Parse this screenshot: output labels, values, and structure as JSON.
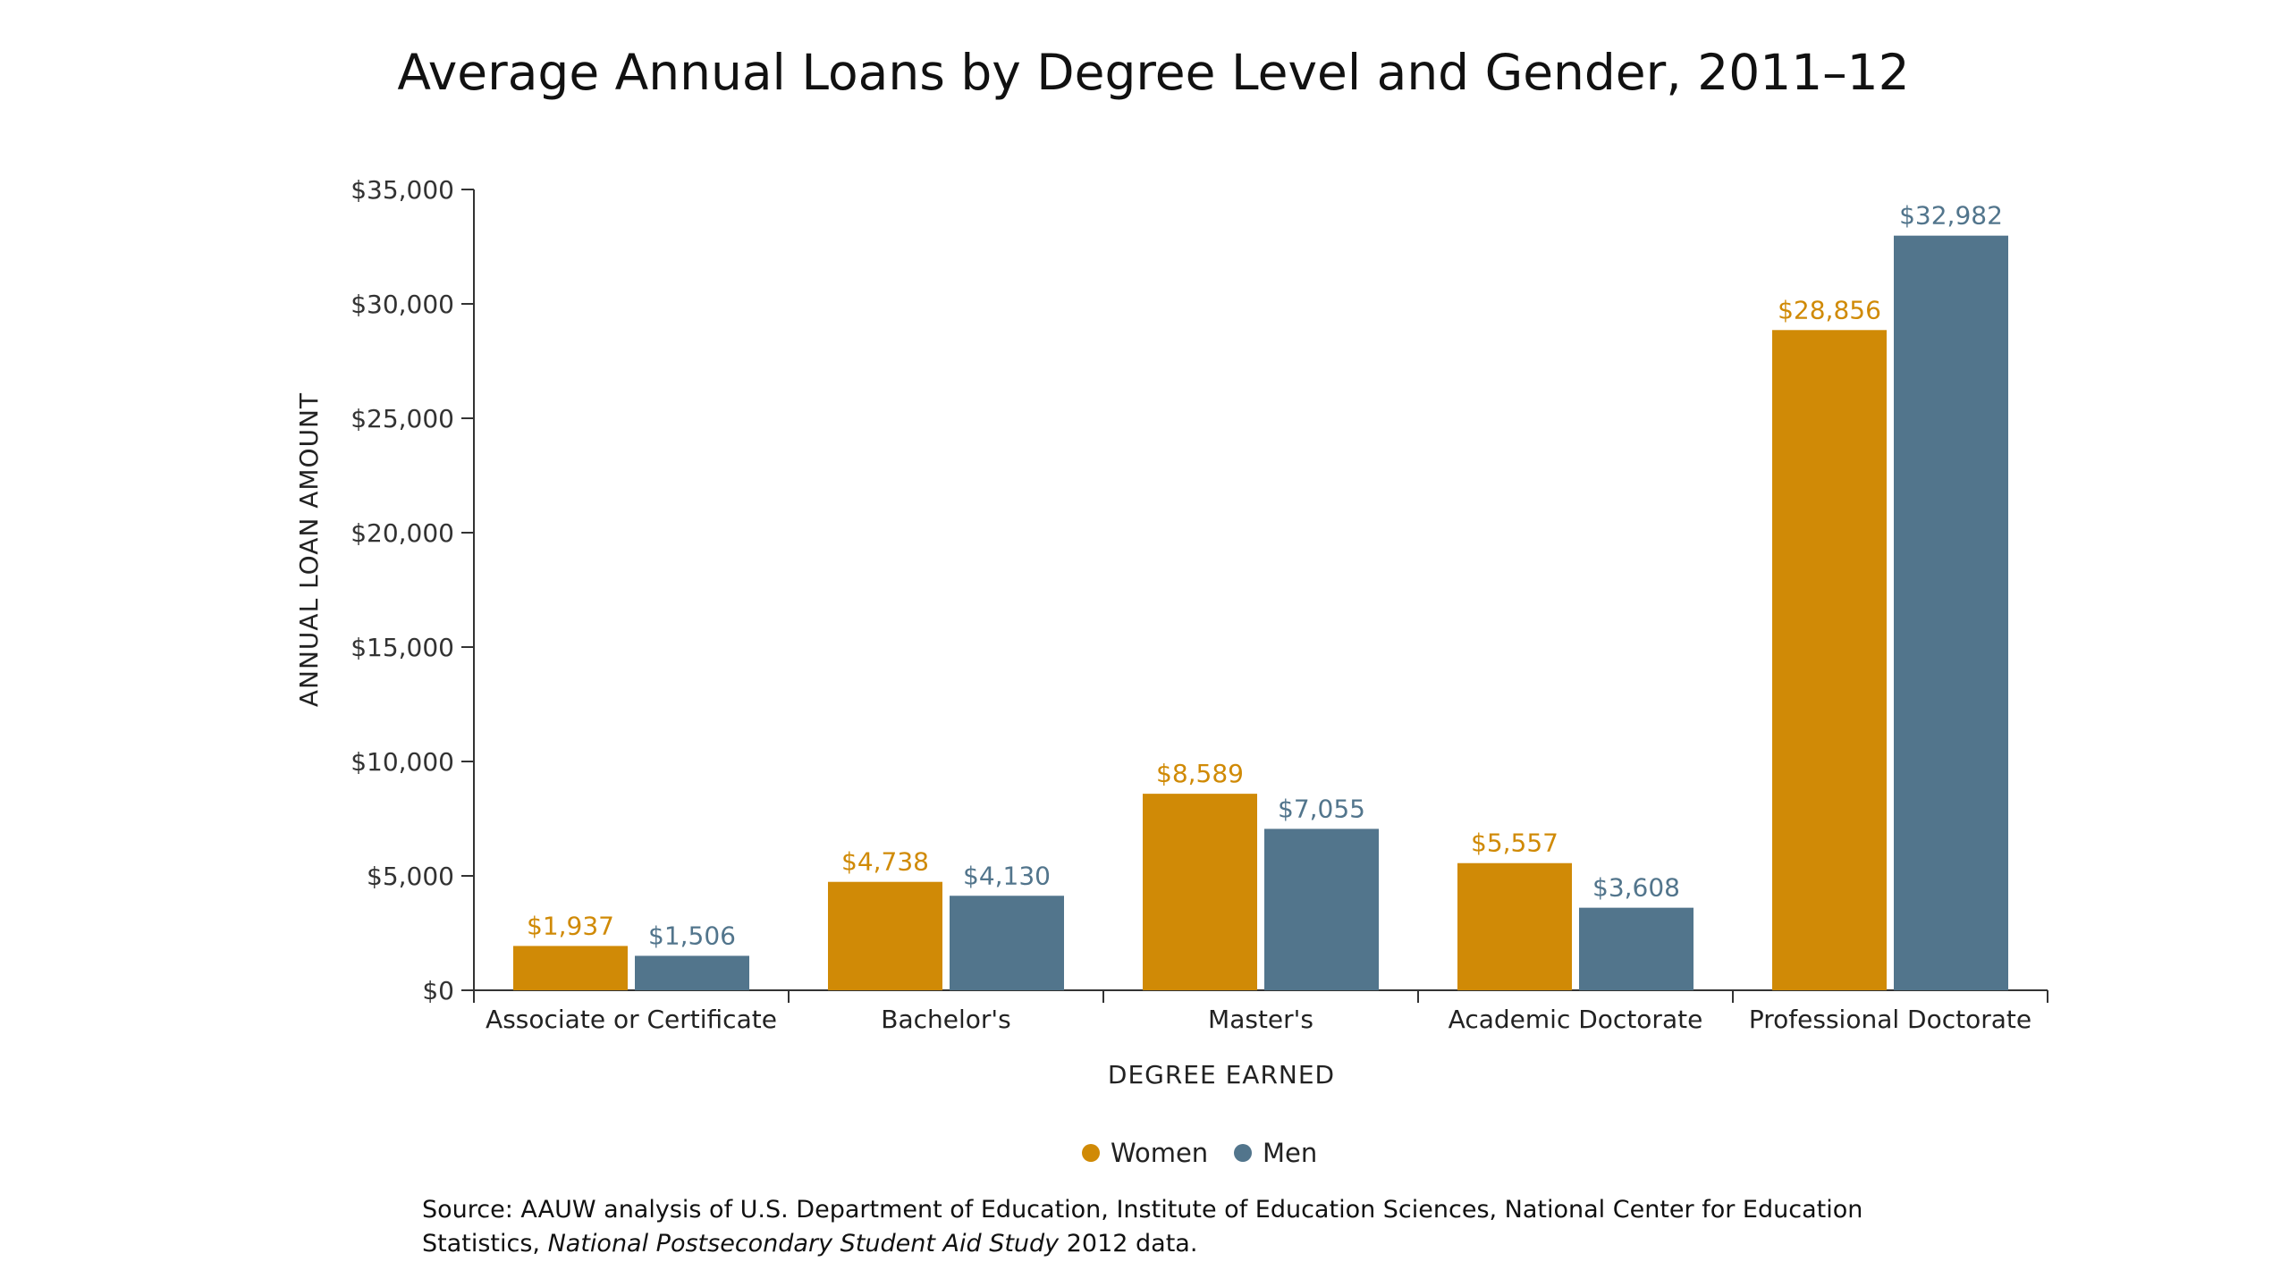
{
  "colors": {
    "women": "#D08A06",
    "men": "#52758C",
    "axis": "#333333",
    "text": "#222222"
  },
  "chart_data": {
    "type": "bar",
    "title": "Average Annual Loans by Degree Level and Gender, 2011–12",
    "xlabel": "DEGREE EARNED",
    "ylabel": "ANNUAL LOAN AMOUNT",
    "categories": [
      "Associate or Certificate",
      "Bachelor's",
      "Master's",
      "Academic Doctorate",
      "Professional Doctorate"
    ],
    "series": [
      {
        "name": "Women",
        "values": [
          1937,
          4738,
          8589,
          5557,
          28856
        ],
        "labels": [
          "$1,937",
          "$4,738",
          "$8,589",
          "$5,557",
          "$28,856"
        ]
      },
      {
        "name": "Men",
        "values": [
          1506,
          4130,
          7055,
          3608,
          32982
        ],
        "labels": [
          "$1,506",
          "$4,130",
          "$7,055",
          "$3,608",
          "$32,982"
        ]
      }
    ],
    "ylim": [
      0,
      35000
    ],
    "yticks": [
      0,
      5000,
      10000,
      15000,
      20000,
      25000,
      30000,
      35000
    ],
    "ytick_labels": [
      "$0",
      "$5,000",
      "$10,000",
      "$15,000",
      "$20,000",
      "$25,000",
      "$30,000",
      "$35,000"
    ],
    "grid": false,
    "legend": "bottom-center"
  },
  "source": {
    "line1": "Source: AAUW analysis of U.S. Department of Education, Institute of Education Sciences, National Center for Education",
    "line2_prefix": "Statistics, ",
    "line2_italic": "National Postsecondary Student Aid Study",
    "line2_suffix": " 2012 data."
  }
}
